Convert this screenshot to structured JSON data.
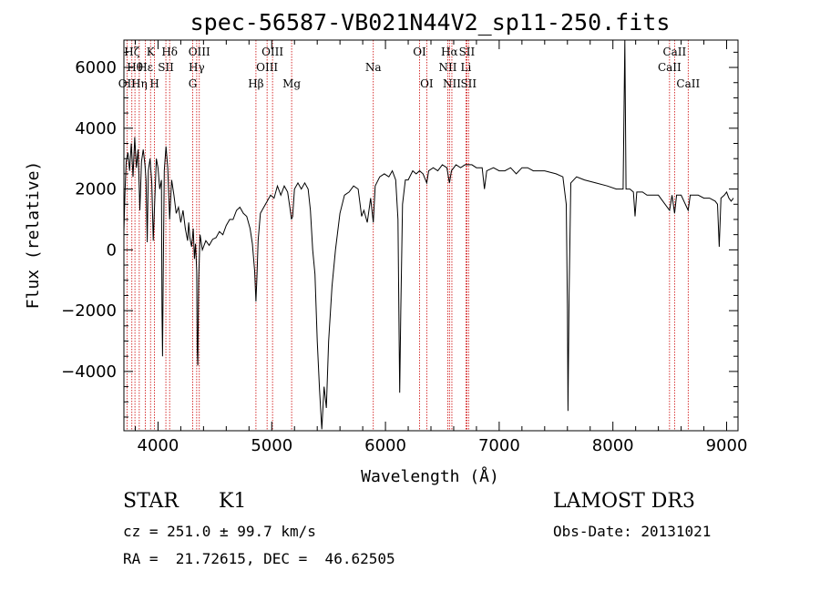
{
  "chart_data": {
    "type": "line",
    "title": "spec-56587-VB021N44V2_sp11-250.fits",
    "xlabel": "Wavelength (Å)",
    "ylabel": "Flux (relative)",
    "xlim": [
      3700,
      9100
    ],
    "ylim": [
      -5950,
      6900
    ],
    "xticks": [
      4000,
      5000,
      6000,
      7000,
      8000,
      9000
    ],
    "yticks": [
      -4000,
      -2000,
      0,
      2000,
      4000,
      6000
    ],
    "grid": false,
    "series": [
      {
        "name": "",
        "color": "#000000",
        "points": [
          [
            3700,
            600
          ],
          [
            3710,
            1900
          ],
          [
            3720,
            2900
          ],
          [
            3735,
            3200
          ],
          [
            3750,
            2600
          ],
          [
            3765,
            3500
          ],
          [
            3780,
            2400
          ],
          [
            3795,
            3700
          ],
          [
            3810,
            2700
          ],
          [
            3825,
            3300
          ],
          [
            3840,
            1300
          ],
          [
            3855,
            2900
          ],
          [
            3870,
            3300
          ],
          [
            3885,
            2800
          ],
          [
            3895,
            2300
          ],
          [
            3905,
            250
          ],
          [
            3915,
            2600
          ],
          [
            3930,
            3000
          ],
          [
            3945,
            2200
          ],
          [
            3958,
            300
          ],
          [
            3970,
            1500
          ],
          [
            3985,
            3000
          ],
          [
            4000,
            2700
          ],
          [
            4015,
            2000
          ],
          [
            4030,
            2300
          ],
          [
            4035,
            -2000
          ],
          [
            4040,
            -3500
          ],
          [
            4045,
            -1000
          ],
          [
            4055,
            2600
          ],
          [
            4070,
            3400
          ],
          [
            4085,
            2700
          ],
          [
            4102,
            1000
          ],
          [
            4120,
            2300
          ],
          [
            4140,
            1800
          ],
          [
            4160,
            1200
          ],
          [
            4180,
            1400
          ],
          [
            4200,
            900
          ],
          [
            4220,
            1300
          ],
          [
            4240,
            700
          ],
          [
            4260,
            300
          ],
          [
            4270,
            900
          ],
          [
            4280,
            400
          ],
          [
            4295,
            100
          ],
          [
            4310,
            700
          ],
          [
            4320,
            -300
          ],
          [
            4330,
            200
          ],
          [
            4340,
            -700
          ],
          [
            4345,
            -3300
          ],
          [
            4350,
            -3800
          ],
          [
            4357,
            -1000
          ],
          [
            4370,
            500
          ],
          [
            4390,
            0
          ],
          [
            4420,
            300
          ],
          [
            4450,
            150
          ],
          [
            4480,
            350
          ],
          [
            4510,
            400
          ],
          [
            4540,
            600
          ],
          [
            4570,
            500
          ],
          [
            4600,
            800
          ],
          [
            4630,
            1000
          ],
          [
            4660,
            1000
          ],
          [
            4690,
            1300
          ],
          [
            4720,
            1400
          ],
          [
            4750,
            1200
          ],
          [
            4780,
            1100
          ],
          [
            4810,
            700
          ],
          [
            4830,
            200
          ],
          [
            4850,
            -700
          ],
          [
            4861,
            -1700
          ],
          [
            4870,
            -900
          ],
          [
            4880,
            300
          ],
          [
            4900,
            1200
          ],
          [
            4930,
            1400
          ],
          [
            4960,
            1600
          ],
          [
            4990,
            1800
          ],
          [
            5020,
            1700
          ],
          [
            5050,
            2100
          ],
          [
            5080,
            1800
          ],
          [
            5110,
            2100
          ],
          [
            5140,
            1900
          ],
          [
            5167,
            1200
          ],
          [
            5173,
            1000
          ],
          [
            5184,
            1100
          ],
          [
            5200,
            2000
          ],
          [
            5230,
            2200
          ],
          [
            5260,
            2000
          ],
          [
            5290,
            2200
          ],
          [
            5320,
            2000
          ],
          [
            5340,
            1300
          ],
          [
            5360,
            0
          ],
          [
            5380,
            -800
          ],
          [
            5400,
            -3000
          ],
          [
            5420,
            -4600
          ],
          [
            5440,
            -5900
          ],
          [
            5460,
            -4500
          ],
          [
            5480,
            -5200
          ],
          [
            5500,
            -3000
          ],
          [
            5530,
            -1200
          ],
          [
            5560,
            0
          ],
          [
            5600,
            1200
          ],
          [
            5640,
            1800
          ],
          [
            5680,
            1900
          ],
          [
            5720,
            2100
          ],
          [
            5760,
            2000
          ],
          [
            5790,
            1100
          ],
          [
            5810,
            1300
          ],
          [
            5840,
            900
          ],
          [
            5870,
            1700
          ],
          [
            5893,
            900
          ],
          [
            5910,
            2100
          ],
          [
            5950,
            2400
          ],
          [
            5990,
            2500
          ],
          [
            6030,
            2400
          ],
          [
            6060,
            2600
          ],
          [
            6090,
            2300
          ],
          [
            6110,
            1000
          ],
          [
            6120,
            -3000
          ],
          [
            6125,
            -4700
          ],
          [
            6135,
            -2000
          ],
          [
            6150,
            1500
          ],
          [
            6175,
            2300
          ],
          [
            6200,
            2300
          ],
          [
            6240,
            2600
          ],
          [
            6270,
            2500
          ],
          [
            6300,
            2600
          ],
          [
            6330,
            2500
          ],
          [
            6363,
            2200
          ],
          [
            6380,
            2600
          ],
          [
            6420,
            2700
          ],
          [
            6460,
            2600
          ],
          [
            6500,
            2800
          ],
          [
            6540,
            2700
          ],
          [
            6563,
            2200
          ],
          [
            6580,
            2600
          ],
          [
            6620,
            2800
          ],
          [
            6660,
            2700
          ],
          [
            6700,
            2800
          ],
          [
            6760,
            2800
          ],
          [
            6800,
            2700
          ],
          [
            6850,
            2700
          ],
          [
            6870,
            2000
          ],
          [
            6890,
            2600
          ],
          [
            6950,
            2700
          ],
          [
            7000,
            2600
          ],
          [
            7050,
            2600
          ],
          [
            7100,
            2700
          ],
          [
            7150,
            2500
          ],
          [
            7200,
            2700
          ],
          [
            7250,
            2700
          ],
          [
            7300,
            2600
          ],
          [
            7400,
            2600
          ],
          [
            7500,
            2500
          ],
          [
            7560,
            2400
          ],
          [
            7590,
            1500
          ],
          [
            7600,
            -2000
          ],
          [
            7605,
            -5300
          ],
          [
            7615,
            -1500
          ],
          [
            7630,
            2200
          ],
          [
            7680,
            2400
          ],
          [
            7750,
            2300
          ],
          [
            7850,
            2200
          ],
          [
            7950,
            2100
          ],
          [
            8030,
            2000
          ],
          [
            8090,
            2000
          ],
          [
            8105,
            6900
          ],
          [
            8115,
            2000
          ],
          [
            8150,
            2000
          ],
          [
            8180,
            1900
          ],
          [
            8195,
            1100
          ],
          [
            8210,
            1900
          ],
          [
            8260,
            1900
          ],
          [
            8300,
            1800
          ],
          [
            8400,
            1800
          ],
          [
            8498,
            1300
          ],
          [
            8520,
            1800
          ],
          [
            8542,
            1200
          ],
          [
            8560,
            1800
          ],
          [
            8600,
            1800
          ],
          [
            8662,
            1300
          ],
          [
            8680,
            1800
          ],
          [
            8750,
            1800
          ],
          [
            8800,
            1700
          ],
          [
            8850,
            1700
          ],
          [
            8900,
            1600
          ],
          [
            8920,
            1500
          ],
          [
            8935,
            100
          ],
          [
            8950,
            1700
          ],
          [
            8980,
            1800
          ],
          [
            9000,
            1900
          ],
          [
            9020,
            1700
          ],
          [
            9040,
            1600
          ],
          [
            9060,
            1700
          ]
        ]
      }
    ],
    "line_markers": {
      "color": "#cc0000",
      "lines": [
        {
          "label": "OII",
          "wl": 3727,
          "row": 3
        },
        {
          "label": "Hδ",
          "wl": 4102,
          "row": 1
        },
        {
          "label": "H",
          "wl": 3969,
          "row": 3
        },
        {
          "label": "Hη",
          "wl": 3835,
          "row": 3
        },
        {
          "label": "Hθ",
          "wl": 3797,
          "row": 2
        },
        {
          "label": "Hε",
          "wl": 3889,
          "row": 2
        },
        {
          "label": "K",
          "wl": 3934,
          "row": 1
        },
        {
          "label": "Hζ",
          "wl": 3770,
          "row": 1
        },
        {
          "label": "SII",
          "wl": 4069,
          "row": 2
        },
        {
          "label": "OIII",
          "wl": 4363,
          "row": 1
        },
        {
          "label": "Hγ",
          "wl": 4340,
          "row": 2
        },
        {
          "label": "G",
          "wl": 4305,
          "row": 3
        },
        {
          "label": "Hβ",
          "wl": 4861,
          "row": 3
        },
        {
          "label": "OIII",
          "wl": 5007,
          "row": 1
        },
        {
          "label": "OIII",
          "wl": 4959,
          "row": 2
        },
        {
          "label": "Mg",
          "wl": 5175,
          "row": 3
        },
        {
          "label": "Na",
          "wl": 5893,
          "row": 2
        },
        {
          "label": "OI",
          "wl": 6300,
          "row": 1
        },
        {
          "label": "OI",
          "wl": 6363,
          "row": 3
        },
        {
          "label": "Hα",
          "wl": 6563,
          "row": 1
        },
        {
          "label": "NII",
          "wl": 6548,
          "row": 2
        },
        {
          "label": "NII",
          "wl": 6584,
          "row": 3
        },
        {
          "label": "SII",
          "wl": 6716,
          "row": 1
        },
        {
          "label": "Li",
          "wl": 6708,
          "row": 2
        },
        {
          "label": "SII",
          "wl": 6731,
          "row": 3
        },
        {
          "label": "CaII",
          "wl": 8542,
          "row": 1
        },
        {
          "label": "CaII",
          "wl": 8498,
          "row": 2
        },
        {
          "label": "CaII",
          "wl": 8662,
          "row": 3
        }
      ]
    }
  },
  "info": {
    "class_label": "STAR",
    "subclass": "K1",
    "survey": "LAMOST DR3",
    "cz": "cz = 251.0 ± 99.7 km/s",
    "obs_date": "Obs-Date: 20131021",
    "coords": "RA =  21.72615, DEC =  46.62505"
  }
}
